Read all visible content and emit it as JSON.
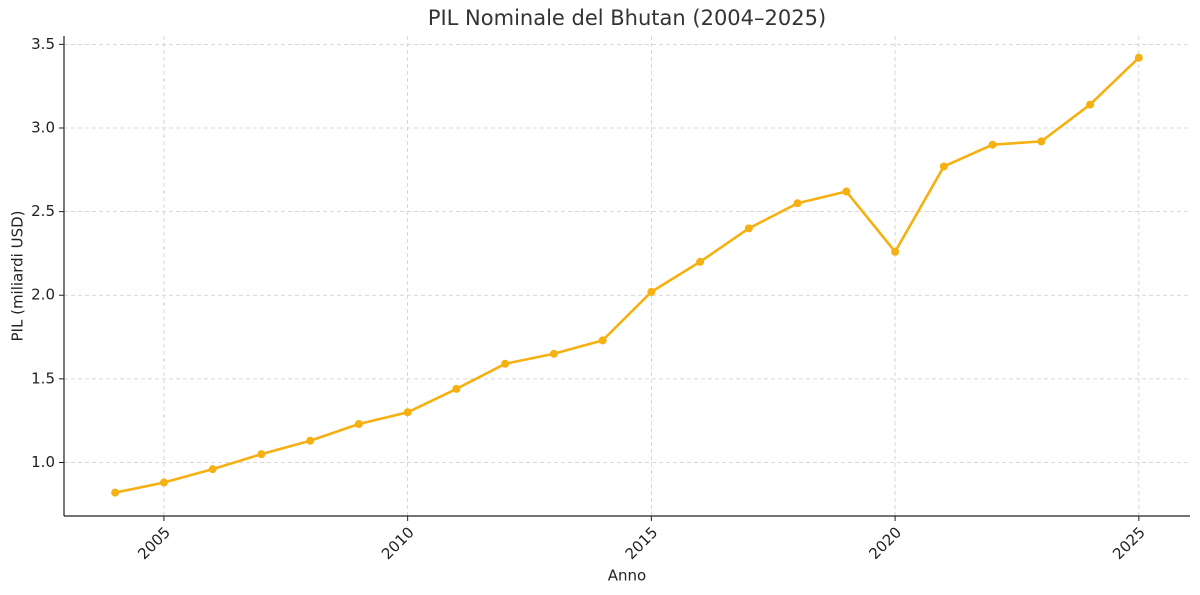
{
  "chart_data": {
    "type": "line",
    "title": "PIL Nominale del Bhutan (2004–2025)",
    "x_label": "Anno",
    "y_label": "PIL (miliardi USD)",
    "x": [
      2004,
      2005,
      2006,
      2007,
      2008,
      2009,
      2010,
      2011,
      2012,
      2013,
      2014,
      2015,
      2016,
      2017,
      2018,
      2019,
      2020,
      2021,
      2022,
      2023,
      2024,
      2025
    ],
    "values": [
      0.82,
      0.88,
      0.96,
      1.05,
      1.13,
      1.23,
      1.3,
      1.44,
      1.59,
      1.65,
      1.73,
      2.02,
      2.2,
      2.4,
      2.55,
      2.62,
      2.26,
      2.77,
      2.9,
      2.92,
      3.14,
      3.42
    ],
    "color": "#f5b011",
    "xlim": [
      2002.95,
      2026.05
    ],
    "xticks": [
      2005,
      2010,
      2015,
      2020,
      2025
    ],
    "ylim": [
      0.68,
      3.55
    ],
    "yticks": [
      {
        "value": 1,
        "label": "1.0"
      },
      1.5,
      {
        "value": 2,
        "label": "2.0"
      },
      2.5,
      {
        "value": 3,
        "label": "3.0"
      },
      3.5
    ],
    "grid": true
  }
}
